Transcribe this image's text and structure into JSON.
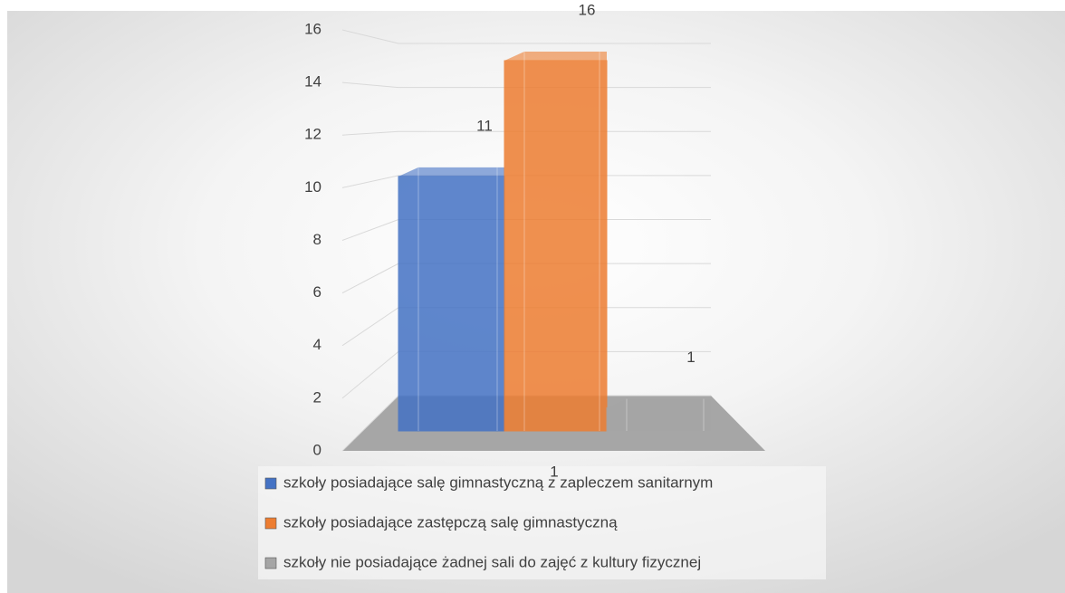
{
  "chart_data": {
    "type": "bar3d",
    "categories": [
      "1"
    ],
    "series": [
      {
        "name": "szkoły posiadające salę gimnastyczną z zapleczem sanitarnym",
        "color": "#4472c4",
        "values": [
          11
        ]
      },
      {
        "name": "szkoły posiadające zastępczą salę gimnastyczną",
        "color": "#ed7d31",
        "values": [
          16
        ]
      },
      {
        "name": "szkoły nie posiadające żadnej sali do zajęć z kultury fizycznej",
        "color": "#a5a5a5",
        "values": [
          1
        ]
      }
    ],
    "ylim": [
      0,
      16
    ],
    "yticks": [
      0,
      2,
      4,
      6,
      8,
      10,
      12,
      14,
      16
    ],
    "grid": true,
    "legend": "bottom",
    "data_labels": true
  }
}
